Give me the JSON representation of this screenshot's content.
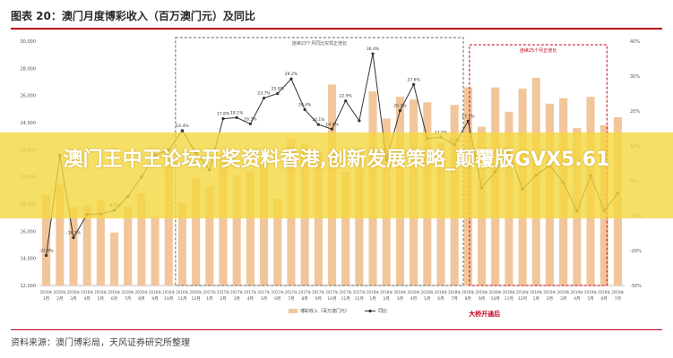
{
  "header": {
    "title": "图表 20：澳门月度博彩收入（百万澳门元）及同比"
  },
  "banner": {
    "text": "澳门王中王论坛开奖资料香港,创新发展策略_颠覆版GVX5.61"
  },
  "footer": {
    "source": "资料来源：澳门博彩局，天风证券研究所整理"
  },
  "colors": {
    "bar": "#f2c69b",
    "line": "#333333",
    "title_rule": "#b8001f",
    "dashed_box": "#666666",
    "red_box": "#c0001a",
    "banner": "#f4d73f"
  },
  "chart_data": {
    "type": "bar",
    "title": "图表 20：澳门月度博彩收入（百万澳门元）及同比",
    "ylim_left": [
      12000,
      30000
    ],
    "ylim_right": [
      -30,
      40
    ],
    "yticks_left": [
      "30,000",
      "28,000",
      "26,000",
      "24,000",
      "22,000",
      "20,000",
      "18,000",
      "16,000",
      "14,000",
      "12,000"
    ],
    "yticks_right": [
      "40%",
      "30%",
      "20%",
      "10%",
      "0%",
      "-10%",
      "-20%",
      "-30%"
    ],
    "categories": [
      "2016年1月",
      "2016年2月",
      "2016年3月",
      "2016年4月",
      "2016年5月",
      "2016年6月",
      "2016年7月",
      "2016年8月",
      "2016年9月",
      "2016年10月",
      "2016年11月",
      "2016年12月",
      "2017年1月",
      "2017年2月",
      "2017年3月",
      "2017年4月",
      "2017年5月",
      "2017年6月",
      "2017年7月",
      "2017年8月",
      "2017年9月",
      "2017年10月",
      "2017年11月",
      "2017年12月",
      "2018年1月",
      "2018年2月",
      "2018年3月",
      "2018年4月",
      "2018年5月",
      "2018年6月",
      "2018年7月",
      "2018年8月",
      "2018年9月",
      "2018年10月",
      "2018年11月",
      "2018年12月",
      "2019年1月",
      "2019年2月",
      "2019年3月",
      "2019年4月",
      "2019年5月",
      "2019年6月",
      "2019年7月"
    ],
    "xtick_month_labels": [
      "1月",
      "2月",
      "3月",
      "4月",
      "5月",
      "6月",
      "7月",
      "8月",
      "9月",
      "10月",
      "11月",
      "12月",
      "1月",
      "2月",
      "3月",
      "4月",
      "5月",
      "6月",
      "7月",
      "8月",
      "9月",
      "10月",
      "11月",
      "12月",
      "1月",
      "2月",
      "3月",
      "4月",
      "5月",
      "6月",
      "7月",
      "8月",
      "9月",
      "10月",
      "11月",
      "12月",
      "1月",
      "2月",
      "3月",
      "4月",
      "5月",
      "6月",
      "7月"
    ],
    "series": [
      {
        "name": "博彩收入（百万澳门元）",
        "axis": "left",
        "kind": "bar",
        "values": [
          18700,
          19500,
          17800,
          17900,
          18300,
          15900,
          17800,
          18800,
          17100,
          21700,
          18100,
          19900,
          19300,
          21700,
          20100,
          20400,
          21300,
          18400,
          22800,
          22400,
          21800,
          26800,
          20400,
          22100,
          26300,
          24300,
          25900,
          25700,
          25500,
          22500,
          25300,
          26600,
          23700,
          26600,
          24800,
          26500,
          27300,
          25400,
          25800,
          23600,
          25900,
          23800,
          24400
        ]
      },
      {
        "name": "同比",
        "axis": "right",
        "kind": "line",
        "values": [
          -21.4,
          7.3,
          -16.3,
          -9.6,
          -9.5,
          -8.5,
          -4.5,
          1.1,
          7.4,
          8.8,
          14.4,
          8.0,
          3.1,
          17.8,
          18.1,
          16.3,
          23.7,
          25.0,
          29.2,
          20.4,
          16.1,
          14.8,
          22.9,
          17.2,
          36.4,
          6.0,
          20.1,
          27.6,
          12.1,
          12.5,
          10.3,
          17.1,
          -2.0,
          2.6,
          8.5,
          -2.4,
          1.6,
          4.4,
          -0.5,
          -8.7,
          1.5,
          -8.6,
          -3.6
        ]
      }
    ],
    "data_labels": [
      {
        "index": 0,
        "text": "-21.4%"
      },
      {
        "index": 2,
        "text": "-16.3%"
      },
      {
        "index": 5,
        "text": "-8.5%"
      },
      {
        "index": 10,
        "text": "14.4%"
      },
      {
        "index": 13,
        "text": "17.8%"
      },
      {
        "index": 14,
        "text": "18.1%"
      },
      {
        "index": 15,
        "text": "16.3%"
      },
      {
        "index": 16,
        "text": "23.7%"
      },
      {
        "index": 17,
        "text": "25.0%"
      },
      {
        "index": 18,
        "text": "29.2%"
      },
      {
        "index": 19,
        "text": "20.4%"
      },
      {
        "index": 20,
        "text": "16.1%"
      },
      {
        "index": 21,
        "text": "14.8%"
      },
      {
        "index": 22,
        "text": "22.9%"
      },
      {
        "index": 24,
        "text": "36.4%"
      },
      {
        "index": 26,
        "text": "20.1%"
      },
      {
        "index": 27,
        "text": "27.6%"
      },
      {
        "index": 29,
        "text": "12.5%"
      },
      {
        "index": 30,
        "text": "10.3%"
      },
      {
        "index": 31,
        "text": "17.1%"
      }
    ],
    "legend": {
      "placement": "bottom-center",
      "entries": [
        "博彩收入（百万澳门元）",
        "同比"
      ]
    },
    "annotations": [
      {
        "text": "连续23个月同比实现正增长",
        "type": "dashed-box",
        "from_index": 10,
        "to_index": 31
      },
      {
        "text": "连续25个月正增长",
        "type": "red-dashed-box",
        "from_index": 31,
        "to_index": 42
      },
      {
        "text": "大桥开通后",
        "type": "red-label",
        "at_index": 31
      }
    ],
    "grid": false
  }
}
